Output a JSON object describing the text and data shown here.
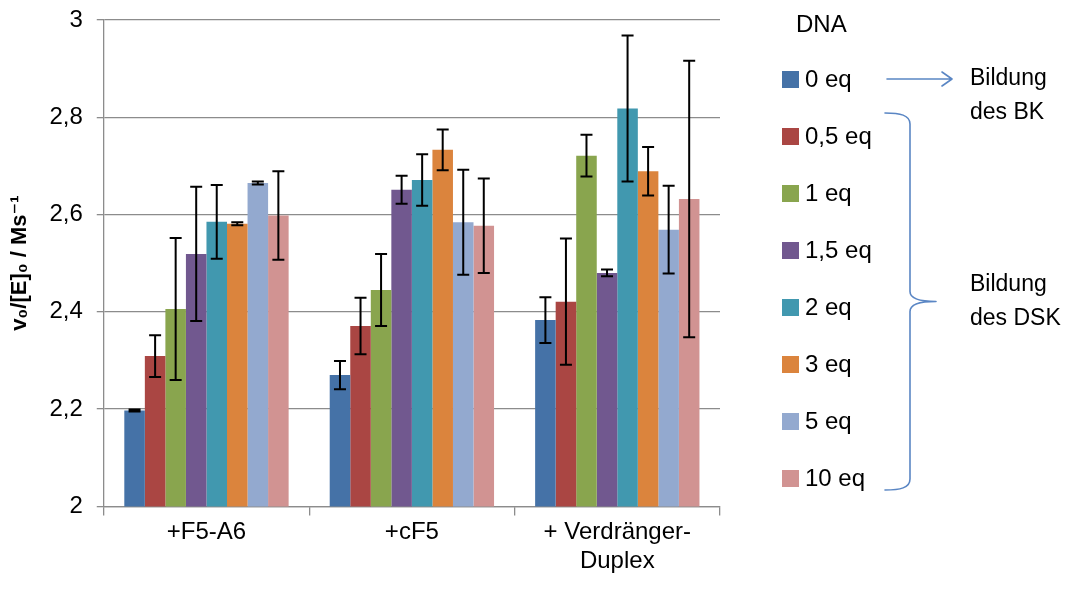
{
  "chart_data": {
    "type": "bar",
    "ylabel": "v₀/[E]₀ / Ms⁻¹",
    "legend_title": "DNA",
    "categories": [
      "+F5-A6",
      "+cF5",
      "+ Verdränger-Duplex"
    ],
    "series": [
      {
        "name": "0 eq",
        "color": "#4572a7",
        "values": [
          2.197,
          2.27,
          2.383
        ],
        "errors": [
          0.002,
          0.029,
          0.047
        ]
      },
      {
        "name": "0,5 eq",
        "color": "#aa4643",
        "values": [
          2.309,
          2.371,
          2.421
        ],
        "errors": [
          0.043,
          0.058,
          0.13
        ]
      },
      {
        "name": "1 eq",
        "color": "#89a54e",
        "values": [
          2.406,
          2.445,
          2.721
        ],
        "errors": [
          0.146,
          0.074,
          0.043
        ]
      },
      {
        "name": "1,5 eq",
        "color": "#71588f",
        "values": [
          2.519,
          2.651,
          2.48
        ],
        "errors": [
          0.138,
          0.029,
          0.007
        ]
      },
      {
        "name": "2 eq",
        "color": "#4198af",
        "values": [
          2.585,
          2.671,
          2.818
        ],
        "errors": [
          0.076,
          0.053,
          0.15
        ]
      },
      {
        "name": "3 eq",
        "color": "#db843d",
        "values": [
          2.581,
          2.733,
          2.689
        ],
        "errors": [
          0.003,
          0.042,
          0.05
        ]
      },
      {
        "name": "5 eq",
        "color": "#93a9cf",
        "values": [
          2.665,
          2.584,
          2.569
        ],
        "errors": [
          0.003,
          0.108,
          0.09
        ]
      },
      {
        "name": "10 eq",
        "color": "#d19392",
        "values": [
          2.598,
          2.577,
          2.632
        ],
        "errors": [
          0.091,
          0.097,
          0.284
        ]
      }
    ],
    "ylim": [
      2,
      3
    ],
    "yticks": [
      2,
      {
        "value": 2.2,
        "label": "2,2"
      },
      {
        "value": 2.4,
        "label": "2,4"
      },
      {
        "value": 2.6,
        "label": "2,6"
      },
      {
        "value": 2.8,
        "label": "2,8"
      },
      3
    ],
    "grid": "y",
    "legend": "right",
    "annotations": [
      "Bildung des BK",
      "Bildung des DSK"
    ]
  }
}
